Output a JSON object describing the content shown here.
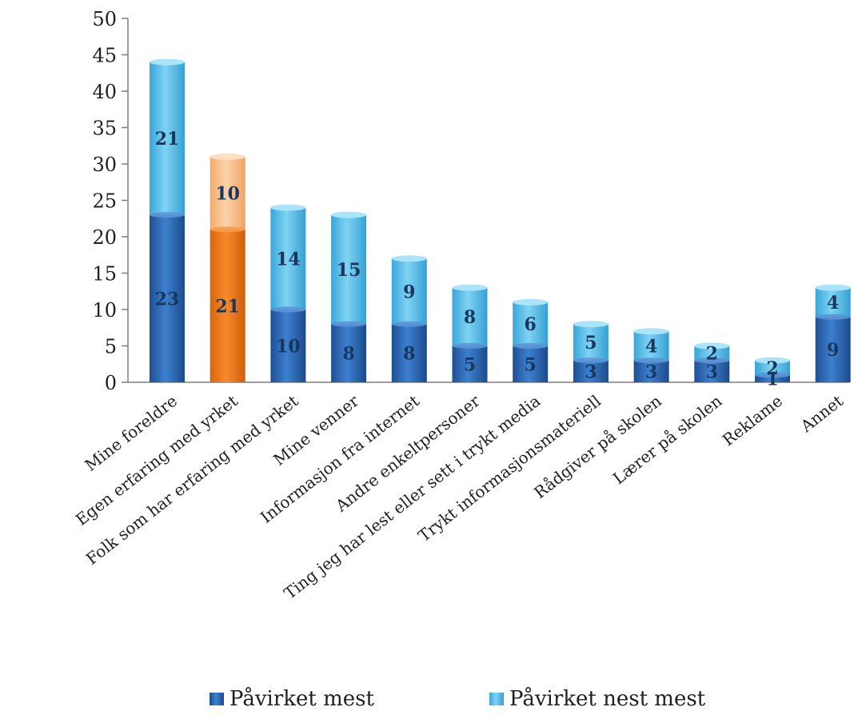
{
  "chart_data": {
    "type": "bar",
    "stacked": true,
    "categories": [
      "Mine foreldre",
      "Egen erfaring med yrket",
      "Folk som har erfaring med yrket",
      "Mine venner",
      "Informasjon fra internet",
      "Andre enkeltpersoner",
      "Ting jeg har lest eller sett i trykt media",
      "Trykt informasjonsmateriell",
      "Rådgiver på skolen",
      "Lærer på skolen",
      "Reklame",
      "Annet"
    ],
    "series": [
      {
        "name": "Påvirket mest",
        "values": [
          23,
          21,
          10,
          8,
          8,
          5,
          5,
          3,
          3,
          3,
          1,
          9
        ]
      },
      {
        "name": "Påvirket nest mest",
        "values": [
          21,
          10,
          14,
          15,
          9,
          8,
          6,
          5,
          4,
          2,
          2,
          4
        ]
      }
    ],
    "yticks": [
      "0",
      "5",
      "10",
      "15",
      "20",
      "25",
      "30",
      "35",
      "40",
      "45",
      "50"
    ],
    "ylim": [
      0,
      50
    ],
    "title": "",
    "xlabel": "",
    "ylabel": "",
    "legend_position": "bottom",
    "highlighted_category": "Egen erfaring med yrket",
    "colors": {
      "series1": "#2e6fbf",
      "series2": "#5fc3ec",
      "highlight1": "#ee7a1c",
      "highlight2": "#f8c08a",
      "label": "#17375e"
    }
  }
}
